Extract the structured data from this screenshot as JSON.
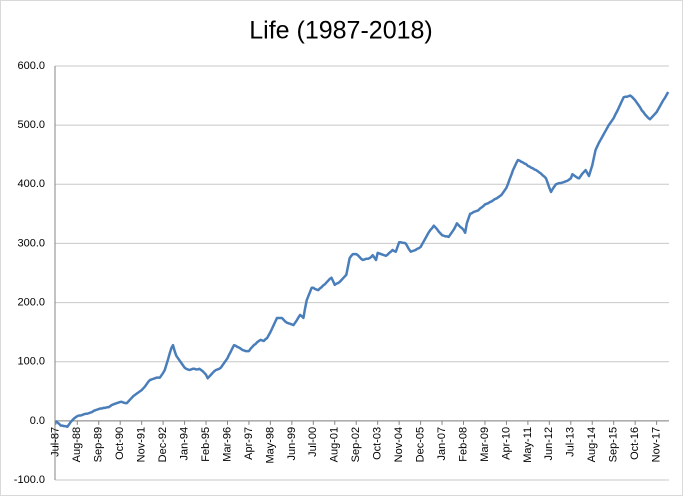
{
  "chart_data": {
    "type": "line",
    "title": "Life (1987-2018)",
    "color": "#4a7ebb",
    "grid": true,
    "ylim": [
      -100,
      600
    ],
    "yticks": [
      {
        "value": -100,
        "label": "-100.0"
      },
      {
        "value": 0,
        "label": "0.0"
      },
      {
        "value": 100,
        "label": "100.0"
      },
      {
        "value": 200,
        "label": "200.0"
      },
      {
        "value": 300,
        "label": "300.0"
      },
      {
        "value": 400,
        "label": "400.0"
      },
      {
        "value": 500,
        "label": "500.0"
      },
      {
        "value": 600,
        "label": "600.0"
      }
    ],
    "categories": [
      "Jul-87",
      null,
      null,
      null,
      null,
      null,
      null,
      null,
      null,
      null,
      null,
      null,
      null,
      "Aug-88",
      null,
      null,
      null,
      null,
      null,
      null,
      null,
      null,
      null,
      null,
      null,
      null,
      "Sep-89",
      null,
      null,
      null,
      null,
      null,
      null,
      null,
      null,
      null,
      null,
      null,
      null,
      "Oct-90",
      null,
      null,
      null,
      null,
      null,
      null,
      null,
      null,
      null,
      null,
      null,
      null,
      "Nov-91",
      null,
      null,
      null,
      null,
      null,
      null,
      null,
      null,
      null,
      null,
      null,
      null,
      "Dec-92",
      null,
      null,
      null,
      null,
      null,
      null,
      null,
      null,
      null,
      null,
      null,
      null,
      "Jan-94",
      null,
      null,
      null,
      null,
      null,
      null,
      null,
      null,
      null,
      null,
      null,
      null,
      "Feb-95",
      null,
      null,
      null,
      null,
      null,
      null,
      null,
      null,
      null,
      null,
      null,
      null,
      "Mar-96",
      null,
      null,
      null,
      null,
      null,
      null,
      null,
      null,
      null,
      null,
      null,
      null,
      "Apr-97",
      null,
      null,
      null,
      null,
      null,
      null,
      null,
      null,
      null,
      null,
      null,
      null,
      "May-98",
      null,
      null,
      null,
      null,
      null,
      null,
      null,
      null,
      null,
      null,
      null,
      null,
      "Jun-99",
      null,
      null,
      null,
      null,
      null,
      null,
      null,
      null,
      null,
      null,
      null,
      null,
      "Jul-00",
      null,
      null,
      null,
      null,
      null,
      null,
      null,
      null,
      null,
      null,
      null,
      null,
      "Aug-01",
      null,
      null,
      null,
      null,
      null,
      null,
      null,
      null,
      null,
      null,
      null,
      null,
      "Sep-02",
      null,
      null,
      null,
      null,
      null,
      null,
      null,
      null,
      null,
      null,
      null,
      null,
      "Oct-03",
      null,
      null,
      null,
      null,
      null,
      null,
      null,
      null,
      null,
      null,
      null,
      null,
      "Nov-04",
      null,
      null,
      null,
      null,
      null,
      null,
      null,
      null,
      null,
      null,
      null,
      null,
      "Dec-05",
      null,
      null,
      null,
      null,
      null,
      null,
      null,
      null,
      null,
      null,
      null,
      null,
      "Jan-07",
      null,
      null,
      null,
      null,
      null,
      null,
      null,
      null,
      null,
      null,
      null,
      null,
      "Feb-08",
      null,
      null,
      null,
      null,
      null,
      null,
      null,
      null,
      null,
      null,
      null,
      null,
      "Mar-09",
      null,
      null,
      null,
      null,
      null,
      null,
      null,
      null,
      null,
      null,
      null,
      null,
      "Apr-10",
      null,
      null,
      null,
      null,
      null,
      null,
      null,
      null,
      null,
      null,
      null,
      null,
      "May-11",
      null,
      null,
      null,
      null,
      null,
      null,
      null,
      null,
      null,
      null,
      null,
      null,
      "Jun-12",
      null,
      null,
      null,
      null,
      null,
      null,
      null,
      null,
      null,
      null,
      null,
      null,
      "Jul-13",
      null,
      null,
      null,
      null,
      null,
      null,
      null,
      null,
      null,
      null,
      null,
      null,
      "Aug-14",
      null,
      null,
      null,
      null,
      null,
      null,
      null,
      null,
      null,
      null,
      null,
      null,
      "Sep-15",
      null,
      null,
      null,
      null,
      null,
      null,
      null,
      null,
      null,
      null,
      null,
      null,
      "Oct-16",
      null,
      null,
      null,
      null,
      null,
      null,
      null,
      null,
      null,
      null,
      null,
      null,
      "Nov-17",
      null,
      null,
      null,
      null,
      null,
      null,
      null
    ],
    "values": [
      0,
      -3,
      -5,
      -8,
      -8,
      -9,
      -9,
      -10,
      -6,
      -2,
      1,
      4,
      6,
      8,
      9,
      9,
      10,
      11,
      12,
      12,
      13,
      14,
      15,
      17,
      18,
      19,
      20,
      21,
      21,
      22,
      22,
      23,
      23,
      25,
      27,
      28,
      29,
      30,
      31,
      32,
      32,
      31,
      30,
      30,
      33,
      36,
      39,
      42,
      44,
      46,
      48,
      50,
      52,
      55,
      58,
      62,
      66,
      69,
      70,
      71,
      72,
      73,
      73,
      73,
      77,
      81,
      86,
      95,
      104,
      114,
      123,
      128,
      118,
      110,
      106,
      102,
      98,
      94,
      90,
      88,
      87,
      86,
      87,
      88,
      88,
      87,
      87,
      88,
      86,
      84,
      81,
      78,
      72,
      75,
      78,
      81,
      84,
      86,
      87,
      88,
      90,
      94,
      98,
      102,
      106,
      112,
      117,
      123,
      128,
      127,
      125,
      124,
      122,
      120,
      119,
      118,
      118,
      118,
      122,
      125,
      128,
      130,
      133,
      135,
      137,
      136,
      135,
      138,
      140,
      145,
      150,
      156,
      162,
      168,
      174,
      174,
      174,
      174,
      171,
      168,
      166,
      165,
      164,
      163,
      162,
      166,
      170,
      175,
      179,
      177,
      174,
      190,
      204,
      211,
      218,
      225,
      225,
      223,
      222,
      221,
      224,
      226,
      229,
      231,
      234,
      237,
      240,
      242,
      236,
      230,
      232,
      233,
      235,
      238,
      241,
      244,
      247,
      261,
      275,
      279,
      282,
      282,
      282,
      280,
      277,
      274,
      272,
      273,
      274,
      274,
      275,
      277,
      280,
      276,
      272,
      284,
      283,
      282,
      281,
      280,
      279,
      281,
      284,
      286,
      289,
      287,
      286,
      294,
      302,
      302,
      301,
      301,
      300,
      295,
      290,
      286,
      287,
      288,
      289,
      291,
      292,
      294,
      299,
      304,
      309,
      314,
      319,
      323,
      326,
      330,
      327,
      324,
      320,
      317,
      314,
      313,
      312,
      312,
      311,
      315,
      319,
      323,
      328,
      334,
      331,
      328,
      326,
      323,
      318,
      334,
      342,
      350,
      351,
      353,
      354,
      355,
      356,
      359,
      361,
      363,
      366,
      367,
      368,
      370,
      371,
      373,
      375,
      376,
      378,
      380,
      382,
      386,
      390,
      394,
      401,
      409,
      416,
      424,
      430,
      436,
      441,
      440,
      438,
      437,
      435,
      434,
      431,
      430,
      428,
      427,
      425,
      424,
      422,
      420,
      418,
      415,
      413,
      410,
      402,
      394,
      387,
      392,
      396,
      400,
      401,
      402,
      402,
      403,
      404,
      405,
      406,
      408,
      410,
      417,
      415,
      413,
      411,
      410,
      414,
      418,
      421,
      424,
      419,
      414,
      423,
      432,
      445,
      458,
      464,
      470,
      475,
      480,
      485,
      490,
      495,
      500,
      504,
      508,
      512,
      518,
      523,
      529,
      535,
      541,
      547,
      548,
      548,
      549,
      550,
      548,
      545,
      542,
      538,
      534,
      530,
      525,
      522,
      518,
      515,
      512,
      510,
      513,
      516,
      519,
      522,
      527,
      532,
      537,
      542,
      546,
      551,
      556
    ]
  }
}
